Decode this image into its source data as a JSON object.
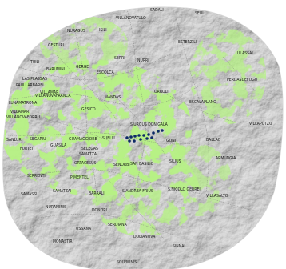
{
  "map": {
    "background_color": "#ffffff",
    "relief_color": "#a9a9a9",
    "vegetation_color": "#78e03a",
    "marker_color": "#0e2a67",
    "places": [
      "SADALI",
      "SEUI",
      "VILLANOVATULO",
      "NURAGUS",
      "ISILI",
      "ESTERZILI",
      "GESTURI",
      "SERRI",
      "NURRI",
      "ULASSAI",
      "TUILI",
      "BARUMINI",
      "GERGEI",
      "ESCOLCA",
      "PERDASDEFOGU",
      "LAS PLASSAS",
      "PAULI ARBAREI",
      "VILLAMAR",
      "ORROLI",
      "VILLANOVAFRANCA",
      "MANDAS",
      "ESCALAPLANO",
      "LUNAMATRONA",
      "GESICO",
      "VILLAMAR",
      "VILLAPUTZU",
      "VILLANOVAFORRU",
      "SIURGUS DONIGALA",
      "GONI",
      "BALLAO",
      "SANLURI",
      "SEGARIU",
      "GUAMAGGIORE",
      "SUELLI",
      "FURTEI",
      "GUASILA",
      "SELEGAS",
      "ARMUNGIA",
      "SAMATZAI",
      "ORTACESUS",
      "SENORBI",
      "SILIUS",
      "SAN BASILIO",
      "SERRENTI",
      "PIMENTEL",
      "SAMASSI",
      "SAMATZAI",
      "BARRALI",
      "S.ANDREA FRIUS",
      "S.NICOLO GERREI",
      "VILLASALTO",
      "NURAMINIS",
      "DONORI",
      "USSANA",
      "SERDIANA",
      "MONASTIR",
      "DOLIANOVA",
      "SINNAI",
      "SOLEMINIS"
    ]
  }
}
